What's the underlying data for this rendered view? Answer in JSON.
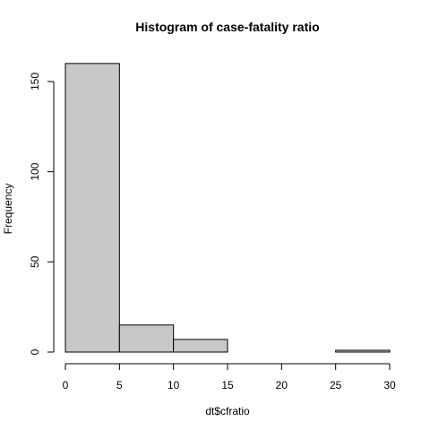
{
  "chart_data": {
    "type": "bar",
    "title": "Histogram of case-fatality ratio",
    "xlabel": "dt$cfratio",
    "ylabel": "Frequency",
    "bins": [
      {
        "start": 0,
        "end": 5,
        "value": 160
      },
      {
        "start": 5,
        "end": 10,
        "value": 15
      },
      {
        "start": 10,
        "end": 15,
        "value": 7
      },
      {
        "start": 15,
        "end": 20,
        "value": 0
      },
      {
        "start": 20,
        "end": 25,
        "value": 0
      },
      {
        "start": 25,
        "end": 30,
        "value": 1
      }
    ],
    "xlim": [
      0,
      30
    ],
    "ylim": [
      0,
      160
    ],
    "x_ticks": [
      0,
      5,
      10,
      15,
      20,
      25,
      30
    ],
    "y_ticks": [
      0,
      50,
      100,
      150
    ],
    "bar_color": "#c8c8c8",
    "grid": false,
    "legend": "none"
  }
}
